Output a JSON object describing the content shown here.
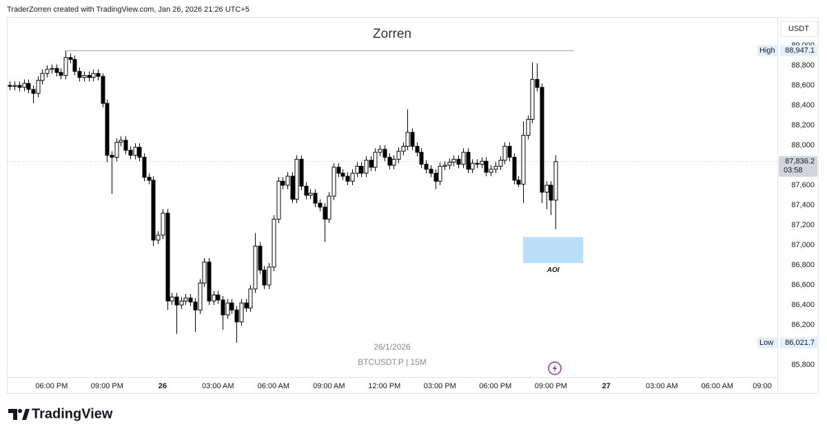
{
  "header": "TraderZorren created with TradingView.com, Jan 26, 2026 21:26 UTC+5",
  "footer": {
    "brand": "TradingView"
  },
  "chart_data": {
    "type": "candlestick",
    "title": "Zorren",
    "currency": "USDT",
    "date_label": "26/1/2026",
    "symbol": "BTCUSDT.P | 15M",
    "up_color": "#ffffff",
    "down_color": "#000000",
    "wick_color": "#000000",
    "grid": false,
    "x": [
      "2026-01-25T15:45",
      "2026-01-25T16:00",
      "2026-01-25T16:15",
      "2026-01-25T16:30",
      "2026-01-25T16:45",
      "2026-01-25T17:00",
      "2026-01-25T17:15",
      "2026-01-25T17:30",
      "2026-01-25T17:45",
      "2026-01-25T18:00",
      "2026-01-25T18:15",
      "2026-01-25T18:30",
      "2026-01-25T18:45",
      "2026-01-25T19:00",
      "2026-01-25T19:15",
      "2026-01-25T19:30",
      "2026-01-25T19:45",
      "2026-01-25T20:00",
      "2026-01-25T20:15",
      "2026-01-25T20:30",
      "2026-01-25T20:45",
      "2026-01-25T21:00",
      "2026-01-25T21:15",
      "2026-01-25T21:30",
      "2026-01-25T21:45",
      "2026-01-25T22:00",
      "2026-01-25T22:15",
      "2026-01-25T22:30",
      "2026-01-25T22:45",
      "2026-01-25T23:00",
      "2026-01-25T23:15",
      "2026-01-25T23:30",
      "2026-01-25T23:45",
      "2026-01-26T00:00",
      "2026-01-26T00:15",
      "2026-01-26T00:30",
      "2026-01-26T00:45",
      "2026-01-26T01:00",
      "2026-01-26T01:15",
      "2026-01-26T01:30",
      "2026-01-26T01:45",
      "2026-01-26T02:00",
      "2026-01-26T02:15",
      "2026-01-26T02:30",
      "2026-01-26T02:45",
      "2026-01-26T03:00",
      "2026-01-26T03:15",
      "2026-01-26T03:30",
      "2026-01-26T03:45",
      "2026-01-26T04:00",
      "2026-01-26T04:15",
      "2026-01-26T04:30",
      "2026-01-26T04:45",
      "2026-01-26T05:00",
      "2026-01-26T05:15",
      "2026-01-26T05:30",
      "2026-01-26T05:45",
      "2026-01-26T06:00",
      "2026-01-26T06:15",
      "2026-01-26T06:30",
      "2026-01-26T06:45",
      "2026-01-26T07:00",
      "2026-01-26T07:15",
      "2026-01-26T07:30",
      "2026-01-26T07:45",
      "2026-01-26T08:00",
      "2026-01-26T08:15",
      "2026-01-26T08:30",
      "2026-01-26T08:45",
      "2026-01-26T09:00",
      "2026-01-26T09:15",
      "2026-01-26T09:30",
      "2026-01-26T09:45",
      "2026-01-26T10:00",
      "2026-01-26T10:15",
      "2026-01-26T10:30",
      "2026-01-26T10:45",
      "2026-01-26T11:00",
      "2026-01-26T11:15",
      "2026-01-26T11:30",
      "2026-01-26T11:45",
      "2026-01-26T12:00",
      "2026-01-26T12:15",
      "2026-01-26T12:30",
      "2026-01-26T12:45",
      "2026-01-26T13:00",
      "2026-01-26T13:15",
      "2026-01-26T13:30",
      "2026-01-26T13:45",
      "2026-01-26T14:00",
      "2026-01-26T14:15",
      "2026-01-26T14:30",
      "2026-01-26T14:45",
      "2026-01-26T15:00",
      "2026-01-26T15:15",
      "2026-01-26T15:30",
      "2026-01-26T15:45",
      "2026-01-26T16:00",
      "2026-01-26T16:15",
      "2026-01-26T16:30",
      "2026-01-26T16:45",
      "2026-01-26T17:00",
      "2026-01-26T17:15",
      "2026-01-26T17:30",
      "2026-01-26T17:45",
      "2026-01-26T18:00",
      "2026-01-26T18:15",
      "2026-01-26T18:30",
      "2026-01-26T18:45",
      "2026-01-26T19:00",
      "2026-01-26T19:15",
      "2026-01-26T19:30",
      "2026-01-26T19:45",
      "2026-01-26T20:00",
      "2026-01-26T20:15",
      "2026-01-26T20:30",
      "2026-01-26T20:45",
      "2026-01-26T21:00",
      "2026-01-26T21:15"
    ],
    "open": [
      88600,
      88590,
      88600,
      88580,
      88620,
      88560,
      88520,
      88650,
      88720,
      88760,
      88770,
      88730,
      88700,
      88880,
      88860,
      88740,
      88680,
      88700,
      88680,
      88720,
      88690,
      88420,
      87900,
      87880,
      88030,
      88050,
      87950,
      87900,
      87980,
      87880,
      87680,
      87650,
      87050,
      87100,
      87320,
      86440,
      86480,
      86400,
      86440,
      86470,
      86430,
      86350,
      86620,
      86830,
      86440,
      86500,
      86450,
      86300,
      86420,
      86350,
      86230,
      86420,
      86370,
      86560,
      86990,
      86750,
      86600,
      86780,
      87260,
      87640,
      87600,
      87690,
      87460,
      87860,
      87590,
      87500,
      87520,
      87420,
      87380,
      87260,
      87490,
      87780,
      87720,
      87690,
      87640,
      87720,
      87790,
      87720,
      87850,
      87780,
      87930,
      87960,
      87880,
      87800,
      87860,
      87940,
      87990,
      88130,
      87990,
      87930,
      87810,
      87760,
      87720,
      87640,
      87790,
      87800,
      87830,
      87860,
      87810,
      87930,
      87760,
      87820,
      87810,
      87840,
      87730,
      87760,
      87790,
      87850,
      87990,
      87880,
      87650,
      87610,
      88100,
      88260,
      88660,
      88580,
      87530,
      87600,
      87450
    ],
    "high": [
      88640,
      88640,
      88640,
      88660,
      88660,
      88600,
      88690,
      88760,
      88800,
      88810,
      88810,
      88770,
      88947.1,
      88920,
      88900,
      88780,
      88740,
      88740,
      88760,
      88760,
      88720,
      88460,
      87940,
      88070,
      88090,
      88090,
      87990,
      88020,
      88020,
      87920,
      87720,
      87690,
      87140,
      87360,
      87360,
      86520,
      86520,
      86480,
      86510,
      86510,
      86470,
      86660,
      86870,
      86870,
      86540,
      86540,
      86490,
      86460,
      86460,
      86390,
      86460,
      86460,
      86600,
      87120,
      87030,
      86790,
      86820,
      87300,
      87680,
      87680,
      87730,
      87730,
      87900,
      87900,
      87630,
      87560,
      87560,
      87460,
      87420,
      87530,
      87820,
      87820,
      87760,
      87730,
      87760,
      87830,
      87830,
      87890,
      87890,
      87970,
      88000,
      88000,
      87920,
      87900,
      87980,
      88030,
      88360,
      88170,
      88030,
      87970,
      87850,
      87800,
      87760,
      87830,
      87840,
      87870,
      87900,
      87900,
      87970,
      87970,
      87860,
      87860,
      87880,
      87880,
      87800,
      87830,
      87890,
      88030,
      88030,
      87920,
      87690,
      88240,
      88300,
      88830,
      88820,
      88620,
      87640,
      87640,
      87900
    ],
    "low": [
      88550,
      88550,
      88540,
      88540,
      88520,
      88420,
      88480,
      88610,
      88680,
      88720,
      88690,
      88660,
      88660,
      88820,
      88700,
      88640,
      88640,
      88640,
      88640,
      88650,
      88380,
      87830,
      87510,
      87840,
      87990,
      87910,
      87860,
      87860,
      87840,
      87640,
      87610,
      86990,
      87010,
      87060,
      86350,
      86400,
      86110,
      86360,
      86400,
      86390,
      86130,
      86310,
      86580,
      86400,
      86400,
      86410,
      86150,
      86260,
      86310,
      86021.7,
      86190,
      86330,
      86330,
      86520,
      86710,
      86560,
      86560,
      86740,
      87220,
      87560,
      87560,
      87420,
      87420,
      87550,
      87460,
      87460,
      87380,
      87340,
      87030,
      87220,
      87450,
      87680,
      87650,
      87600,
      87600,
      87680,
      87680,
      87680,
      87740,
      87740,
      87890,
      87840,
      87760,
      87760,
      87820,
      87900,
      87950,
      87950,
      87890,
      87770,
      87720,
      87680,
      87560,
      87600,
      87750,
      87760,
      87790,
      87770,
      87770,
      87720,
      87720,
      87770,
      87770,
      87690,
      87690,
      87720,
      87750,
      87810,
      87840,
      87610,
      87580,
      87420,
      88060,
      88220,
      88540,
      87420,
      87360,
      87300,
      87160
    ],
    "close": [
      88590,
      88600,
      88580,
      88620,
      88560,
      88520,
      88650,
      88720,
      88760,
      88770,
      88730,
      88700,
      88880,
      88860,
      88740,
      88680,
      88700,
      88680,
      88720,
      88690,
      88420,
      87900,
      87880,
      88030,
      88050,
      87950,
      87900,
      87980,
      87880,
      87680,
      87650,
      87050,
      87100,
      87320,
      86440,
      86480,
      86400,
      86440,
      86470,
      86430,
      86350,
      86620,
      86830,
      86440,
      86500,
      86450,
      86300,
      86420,
      86350,
      86230,
      86420,
      86370,
      86560,
      86990,
      86750,
      86600,
      86780,
      87260,
      87640,
      87600,
      87690,
      87460,
      87860,
      87590,
      87500,
      87520,
      87420,
      87380,
      87260,
      87490,
      87780,
      87720,
      87690,
      87640,
      87720,
      87790,
      87720,
      87850,
      87780,
      87930,
      87960,
      87880,
      87800,
      87860,
      87940,
      87990,
      88130,
      87990,
      87930,
      87810,
      87760,
      87720,
      87640,
      87790,
      87800,
      87830,
      87860,
      87810,
      87930,
      87760,
      87820,
      87810,
      87840,
      87730,
      87760,
      87790,
      87850,
      87990,
      87880,
      87650,
      87610,
      88100,
      88260,
      88660,
      88580,
      87530,
      87600,
      87450,
      87836.2
    ],
    "xlim": [
      "2026-01-25T15:35",
      "2026-01-27T09:15"
    ],
    "xticks": [
      {
        "value": "2026-01-25T18:00",
        "label": "06:00 PM"
      },
      {
        "value": "2026-01-25T21:00",
        "label": "09:00 PM"
      },
      {
        "value": "2026-01-26T00:00",
        "label": "26"
      },
      {
        "value": "2026-01-26T03:00",
        "label": "03:00 AM"
      },
      {
        "value": "2026-01-26T06:00",
        "label": "06:00 AM"
      },
      {
        "value": "2026-01-26T09:00",
        "label": "09:00 AM"
      },
      {
        "value": "2026-01-26T12:00",
        "label": "12:00 PM"
      },
      {
        "value": "2026-01-26T15:00",
        "label": "03:00 PM"
      },
      {
        "value": "2026-01-26T18:00",
        "label": "06:00 PM"
      },
      {
        "value": "2026-01-26T21:00",
        "label": "09:00 PM"
      },
      {
        "value": "2026-01-27T00:00",
        "label": "27"
      },
      {
        "value": "2026-01-27T03:00",
        "label": "03:00 AM"
      },
      {
        "value": "2026-01-27T06:00",
        "label": "06:00 AM"
      },
      {
        "value": "2026-01-27T09:00",
        "label": "09:00"
      }
    ],
    "ylim": [
      85676,
      89283
    ],
    "yticks": [
      {
        "value": 85800,
        "label": "85,800"
      },
      {
        "value": 86000,
        "label": "86,000"
      },
      {
        "value": 86200,
        "label": "86,200"
      },
      {
        "value": 86400,
        "label": "86,400"
      },
      {
        "value": 86600,
        "label": "86,600"
      },
      {
        "value": 86800,
        "label": "86,800"
      },
      {
        "value": 87000,
        "label": "87,000"
      },
      {
        "value": 87200,
        "label": "87,200"
      },
      {
        "value": 87400,
        "label": "87,400"
      },
      {
        "value": 87600,
        "label": "87,600"
      },
      {
        "value": 87800,
        "label": "87,800"
      },
      {
        "value": 88000,
        "label": "88,000"
      },
      {
        "value": 88200,
        "label": "88,200"
      },
      {
        "value": 88400,
        "label": "88,400"
      },
      {
        "value": 88600,
        "label": "88,600"
      },
      {
        "value": 88800,
        "label": "88,800"
      },
      {
        "value": 89000,
        "label": "89,000"
      }
    ],
    "last_price": {
      "value": 87836.2,
      "label": "87,836.2"
    },
    "countdown": "03:58",
    "high_marker": {
      "name": "High",
      "value": 88947.1,
      "label": "88,947.1",
      "x": [
        "2026-01-25T18:45",
        "2026-01-26T22:15"
      ]
    },
    "low_marker": {
      "name": "Low",
      "value": 86021.7,
      "label": "86,021.7"
    },
    "annotations": [
      {
        "text": "AOI",
        "x": [
          "2026-01-26T19:30",
          "2026-01-26T22:45"
        ],
        "y": [
          86820,
          87080
        ],
        "color": "#bbdefb"
      }
    ]
  }
}
